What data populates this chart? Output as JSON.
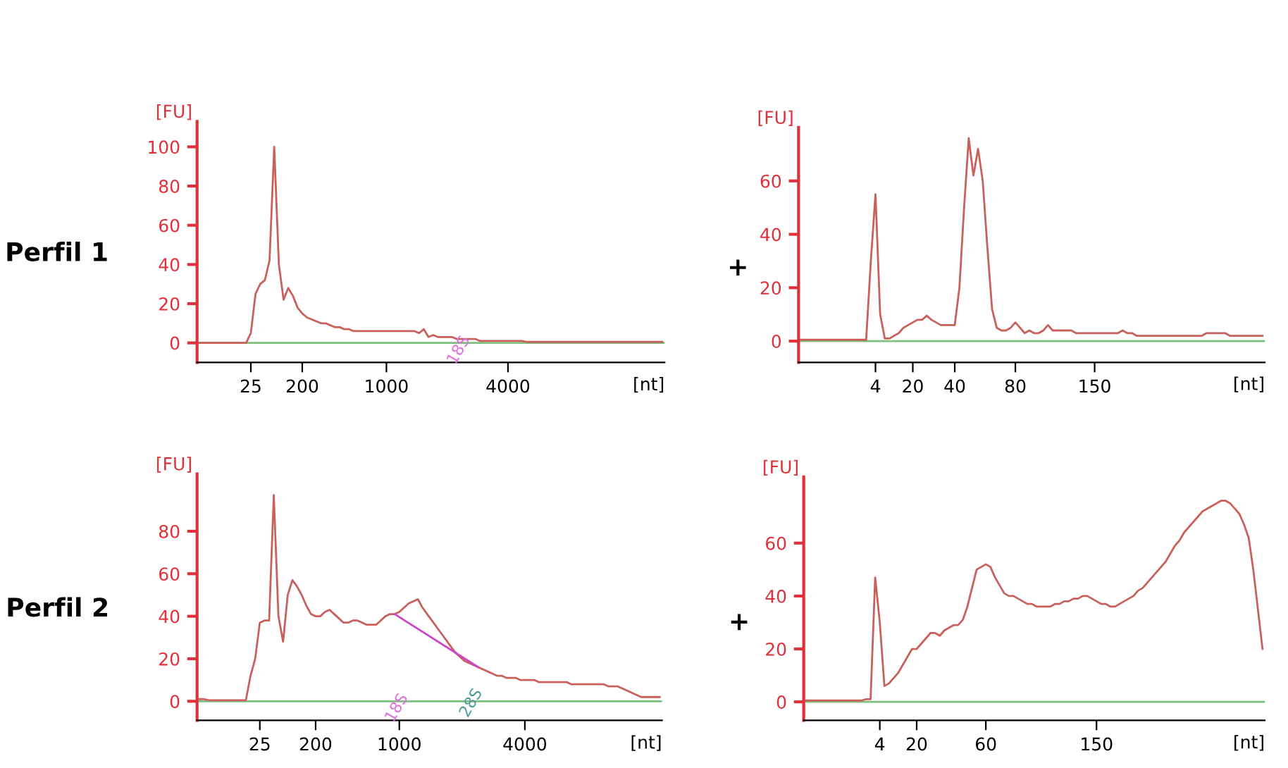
{
  "chart_data": [
    {
      "type": "line",
      "xlabel": "[nt]",
      "ylabel": "[FU]",
      "annotations": [
        "Perfil 1",
        "18S"
      ],
      "categories": [
        null,
        null,
        null,
        null,
        null,
        null,
        null,
        null,
        null,
        null,
        null,
        "25",
        null,
        null,
        null,
        null,
        null,
        null,
        null,
        null,
        null,
        null,
        "200",
        null,
        null,
        null,
        null,
        null,
        null,
        null,
        null,
        null,
        null,
        null,
        null,
        null,
        null,
        null,
        null,
        null,
        "1000",
        null,
        null,
        null,
        null,
        null,
        null,
        null,
        null,
        null,
        null,
        null,
        null,
        null,
        null,
        null,
        null,
        null,
        null,
        null,
        null,
        null,
        null,
        null,
        null,
        null,
        "4000",
        null,
        null,
        null,
        null,
        null,
        null,
        null,
        null,
        null,
        null,
        null,
        null,
        null,
        null,
        null,
        null,
        null,
        null,
        null,
        null,
        null,
        null,
        null,
        null,
        null,
        null,
        null,
        null,
        null,
        null,
        null,
        null,
        null
      ],
      "series": [
        {
          "color": "#c8605c",
          "values": [
            0,
            0,
            0,
            0,
            0,
            0,
            0,
            0,
            0,
            0,
            0,
            5,
            25,
            30,
            32,
            42,
            100,
            40,
            22,
            28,
            24,
            18,
            15,
            13,
            12,
            11,
            10,
            10,
            9,
            8,
            8,
            7,
            7,
            6,
            6,
            6,
            6,
            6,
            6,
            6,
            6,
            6,
            6,
            6,
            6,
            6,
            6,
            5,
            7,
            3,
            4,
            3,
            3,
            3,
            3,
            2,
            2,
            2,
            2,
            2,
            1,
            1,
            1,
            1,
            1,
            1,
            1,
            1,
            1,
            1,
            0.5,
            0.5,
            0.5,
            0.5,
            0.5,
            0.5,
            0.5,
            0.5,
            0.5,
            0.5,
            0.5,
            0.5,
            0.5,
            0.5,
            0.5,
            0.5,
            0.5,
            0.5,
            0.5,
            0.5,
            0.5,
            0.5,
            0.5,
            0.5,
            0.5,
            0.5,
            0.5,
            0.5,
            0.5,
            0.5
          ]
        }
      ],
      "ylim": [
        -10,
        113
      ],
      "yticks": [
        0,
        20,
        40,
        60,
        80,
        100
      ],
      "ref_lines": [
        {
          "axis": "y",
          "value": 0,
          "color": "#7fbf7f"
        }
      ]
    },
    {
      "type": "line",
      "xlabel": "[nt]",
      "ylabel": "[FU]",
      "annotations": [
        "+"
      ],
      "categories": [
        null,
        null,
        null,
        null,
        null,
        null,
        null,
        null,
        null,
        null,
        null,
        null,
        null,
        null,
        null,
        null,
        "4",
        null,
        null,
        null,
        null,
        null,
        null,
        null,
        "20",
        null,
        null,
        null,
        null,
        null,
        null,
        null,
        null,
        "40",
        null,
        null,
        null,
        null,
        null,
        null,
        null,
        null,
        null,
        null,
        null,
        null,
        "80",
        null,
        null,
        null,
        null,
        null,
        null,
        null,
        null,
        null,
        null,
        null,
        null,
        null,
        null,
        null,
        null,
        "150",
        null,
        null,
        null,
        null,
        null,
        null,
        null,
        null,
        null,
        null,
        null,
        null,
        null,
        null,
        null,
        null,
        null,
        null,
        null,
        null,
        null,
        null,
        null,
        null,
        null,
        null,
        null,
        null,
        null,
        null,
        null,
        null,
        null,
        null,
        null,
        null
      ],
      "series": [
        {
          "color": "#c8605c",
          "values": [
            0.5,
            0.5,
            0.5,
            0.5,
            0.5,
            0.5,
            0.5,
            0.5,
            0.5,
            0.5,
            0.5,
            0.5,
            0.5,
            0.5,
            0.5,
            30,
            55,
            10,
            1,
            1,
            2,
            3,
            5,
            6,
            7,
            8,
            8,
            9.5,
            8,
            7,
            6,
            6,
            6,
            6,
            20,
            50,
            76,
            62,
            72,
            60,
            35,
            12,
            5,
            4,
            4,
            5,
            7,
            5,
            3,
            4,
            3,
            3,
            4,
            6,
            4,
            4,
            4,
            4,
            4,
            3,
            3,
            3,
            3,
            3,
            3,
            3,
            3,
            3,
            3,
            4,
            3,
            3,
            2,
            2,
            2,
            2,
            2,
            2,
            2,
            2,
            2,
            2,
            2,
            2,
            2,
            2,
            2,
            3,
            3,
            3,
            3,
            3,
            2,
            2,
            2,
            2,
            2,
            2,
            2,
            2
          ]
        }
      ],
      "ylim": [
        -8,
        80
      ],
      "yticks": [
        0,
        20,
        40,
        60
      ],
      "ref_lines": [
        {
          "axis": "y",
          "value": 0,
          "color": "#7fbf7f"
        }
      ]
    },
    {
      "type": "line",
      "xlabel": "[nt]",
      "ylabel": "[FU]",
      "annotations": [
        "Perfil 2",
        "18S",
        "28S"
      ],
      "categories": [
        null,
        null,
        null,
        null,
        null,
        null,
        null,
        null,
        null,
        null,
        null,
        null,
        null,
        "25",
        null,
        null,
        null,
        null,
        null,
        null,
        null,
        null,
        null,
        null,
        null,
        "200",
        null,
        null,
        null,
        null,
        null,
        null,
        null,
        null,
        null,
        null,
        null,
        null,
        null,
        null,
        null,
        null,
        null,
        "1000",
        null,
        null,
        null,
        null,
        null,
        null,
        null,
        null,
        null,
        null,
        null,
        null,
        null,
        null,
        null,
        null,
        null,
        null,
        null,
        null,
        null,
        null,
        null,
        null,
        null,
        null,
        "4000",
        null,
        null,
        null,
        null,
        null,
        null,
        null,
        null,
        null,
        null,
        null,
        null,
        null,
        null,
        null,
        null,
        null,
        null,
        null,
        null,
        null,
        null,
        null,
        null,
        null,
        null,
        null,
        null,
        null
      ],
      "series": [
        {
          "color": "#c8605c",
          "values": [
            1,
            1,
            0.5,
            0.5,
            0.5,
            0.5,
            0.5,
            0.5,
            0.5,
            0.5,
            0.5,
            12,
            20,
            37,
            38,
            38,
            97,
            40,
            28,
            50,
            57,
            54,
            50,
            45,
            41,
            40,
            40,
            42,
            43,
            41,
            39,
            37,
            37,
            38,
            38,
            37,
            36,
            36,
            36,
            38,
            40,
            41,
            41,
            42,
            44,
            46,
            47,
            48,
            44,
            41,
            38,
            35,
            32,
            29,
            26,
            23,
            21,
            19,
            18,
            17,
            16,
            15,
            14,
            13,
            12,
            12,
            11,
            11,
            11,
            10,
            10,
            10,
            10,
            9,
            9,
            9,
            9,
            9,
            9,
            9,
            8,
            8,
            8,
            8,
            8,
            8,
            8,
            8,
            7,
            7,
            7,
            6,
            5,
            4,
            3,
            2,
            2,
            2,
            2,
            2
          ]
        },
        {
          "color": "#cc44cc",
          "values": [
            null,
            null,
            null,
            null,
            null,
            null,
            null,
            null,
            null,
            null,
            null,
            null,
            null,
            null,
            null,
            null,
            null,
            null,
            null,
            null,
            null,
            null,
            null,
            null,
            null,
            null,
            null,
            null,
            null,
            null,
            null,
            null,
            null,
            null,
            null,
            null,
            null,
            null,
            null,
            null,
            null,
            null,
            41,
            null,
            null,
            null,
            null,
            null,
            null,
            null,
            null,
            null,
            null,
            null,
            null,
            null,
            null,
            null,
            null,
            null,
            16,
            null,
            null,
            null,
            null,
            null,
            null,
            null,
            null,
            null,
            null,
            null,
            null,
            null,
            null,
            null,
            null,
            null,
            null,
            null,
            null,
            null,
            null,
            null,
            null,
            null,
            null,
            null,
            null,
            null,
            null,
            null,
            null,
            null,
            null,
            null,
            null,
            null,
            null,
            null
          ]
        }
      ],
      "ylim": [
        -9,
        107
      ],
      "yticks": [
        0,
        20,
        40,
        60,
        80
      ],
      "ref_lines": [
        {
          "axis": "y",
          "value": 0,
          "color": "#7fbf7f"
        }
      ]
    },
    {
      "type": "line",
      "xlabel": "[nt]",
      "ylabel": "[FU]",
      "annotations": [
        "+"
      ],
      "categories": [
        null,
        null,
        null,
        null,
        null,
        null,
        null,
        null,
        null,
        null,
        null,
        null,
        null,
        null,
        null,
        null,
        "4",
        null,
        null,
        null,
        null,
        null,
        null,
        null,
        "20",
        null,
        null,
        null,
        null,
        null,
        null,
        null,
        null,
        null,
        null,
        null,
        null,
        null,
        null,
        "60",
        null,
        null,
        null,
        null,
        null,
        null,
        null,
        null,
        null,
        null,
        null,
        null,
        null,
        null,
        null,
        null,
        null,
        null,
        null,
        null,
        null,
        null,
        null,
        "150",
        null,
        null,
        null,
        null,
        null,
        null,
        null,
        null,
        null,
        null,
        null,
        null,
        null,
        null,
        null,
        null,
        null,
        null,
        null,
        null,
        null,
        null,
        null,
        null,
        null,
        null,
        null,
        null,
        null,
        null,
        null,
        null,
        null,
        null,
        null,
        null
      ],
      "series": [
        {
          "color": "#c8605c",
          "values": [
            0.5,
            0.5,
            0.5,
            0.5,
            0.5,
            0.5,
            0.5,
            0.5,
            0.5,
            0.5,
            0.5,
            0.5,
            0.5,
            1,
            1,
            47,
            30,
            6,
            7,
            9,
            11,
            14,
            17,
            20,
            20,
            22,
            24,
            26,
            26,
            25,
            27,
            28,
            29,
            29,
            31,
            36,
            43,
            50,
            51,
            52,
            51,
            47,
            44,
            41,
            40,
            40,
            39,
            38,
            37,
            37,
            36,
            36,
            36,
            36,
            37,
            37,
            38,
            38,
            39,
            39,
            40,
            40,
            39,
            38,
            37,
            37,
            36,
            36,
            37,
            38,
            39,
            40,
            42,
            43,
            45,
            47,
            49,
            51,
            53,
            56,
            59,
            61,
            64,
            66,
            68,
            70,
            72,
            73,
            74,
            75,
            76,
            76,
            75,
            73,
            71,
            67,
            62,
            50,
            35,
            20
          ]
        }
      ],
      "ylim": [
        -7,
        85
      ],
      "yticks": [
        0,
        20,
        40,
        60
      ],
      "ref_lines": [
        {
          "axis": "y",
          "value": 0,
          "color": "#7fbf7f"
        }
      ]
    }
  ]
}
